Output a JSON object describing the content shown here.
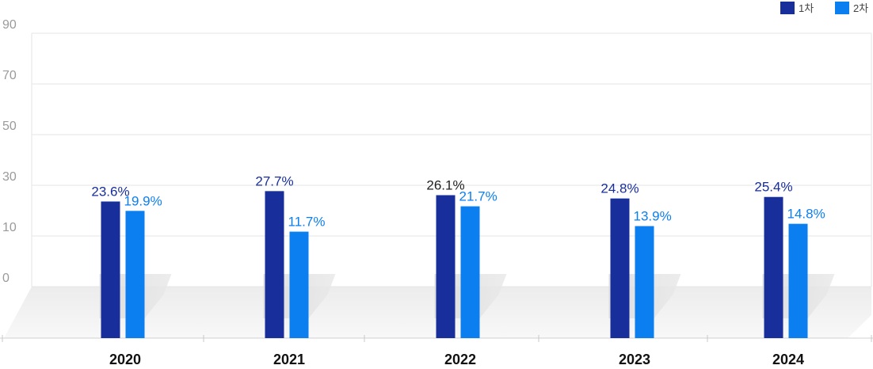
{
  "chart_data": {
    "type": "bar",
    "categories": [
      "2020",
      "2021",
      "2022",
      "2023",
      "2024"
    ],
    "series": [
      {
        "name": "1차",
        "color": "#172e9b",
        "values": [
          23.6,
          27.7,
          26.1,
          24.8,
          25.4
        ],
        "labels": [
          "23.6%",
          "27.7%",
          "26.1%",
          "24.8%",
          "25.4%"
        ],
        "label_colors": [
          "#172e9b",
          "#172e9b",
          "#222222",
          "#172e9b",
          "#172e9b"
        ]
      },
      {
        "name": "2차",
        "color": "#0c7ff0",
        "values": [
          19.9,
          11.7,
          21.7,
          13.9,
          14.8
        ],
        "labels": [
          "19.9%",
          "11.7%",
          "21.7%",
          "13.9%",
          "14.8%"
        ],
        "label_colors": [
          "#0c7ff0",
          "#0c7ff0",
          "#0c7ff0",
          "#0c7ff0",
          "#0c7ff0"
        ]
      }
    ],
    "y_ticks": [
      "0",
      "10",
      "30",
      "50",
      "70",
      "90"
    ],
    "ylim": [
      0,
      90
    ],
    "grid": true,
    "legend_position": "top-right",
    "title": "",
    "xlabel": "",
    "ylabel": ""
  }
}
